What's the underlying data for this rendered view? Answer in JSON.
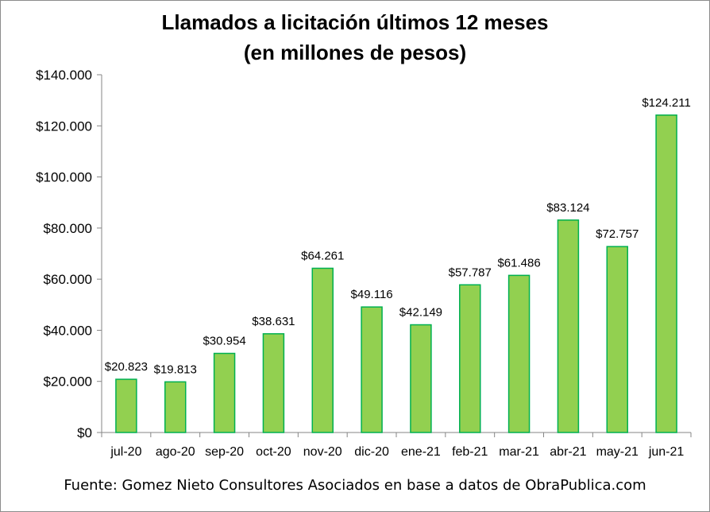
{
  "chart_data": {
    "type": "bar",
    "title": "Llamados a licitación últimos 12 meses",
    "subtitle": "(en millones de pesos)",
    "categories": [
      "jul-20",
      "ago-20",
      "sep-20",
      "oct-20",
      "nov-20",
      "dic-20",
      "ene-21",
      "feb-21",
      "mar-21",
      "abr-21",
      "may-21",
      "jun-21"
    ],
    "values": [
      20823,
      19813,
      30954,
      38631,
      64261,
      49116,
      42149,
      57787,
      61486,
      83124,
      72757,
      124211
    ],
    "data_labels": [
      "$20.823",
      "$19.813",
      "$30.954",
      "$38.631",
      "$64.261",
      "$49.116",
      "$42.149",
      "$57.787",
      "$61.486",
      "$83.124",
      "$72.757",
      "$124.211"
    ],
    "ylim": [
      0,
      140000
    ],
    "y_ticks": [
      0,
      20000,
      40000,
      60000,
      80000,
      100000,
      120000,
      140000
    ],
    "y_tick_labels": [
      "$0",
      "$20.000",
      "$40.000",
      "$60.000",
      "$80.000",
      "$100.000",
      "$120.000",
      "$140.000"
    ],
    "xlabel": "",
    "ylabel": "",
    "grid": false,
    "legend": "none",
    "bar_fill": "#92d050",
    "bar_stroke": "#00b050"
  },
  "footer": {
    "source": "Fuente: Gomez Nieto Consultores Asociados en base a datos de ObraPublica.com"
  }
}
